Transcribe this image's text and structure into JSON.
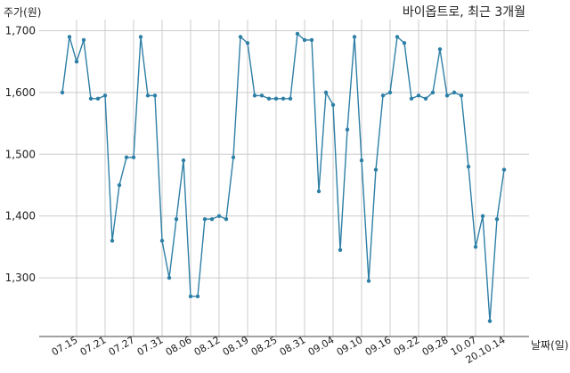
{
  "chart_data": {
    "type": "line",
    "title": "바이옵트로, 최근 3개월",
    "ylabel": "주가(원)",
    "xlabel": "날짜(일)",
    "ylim": [
      1205,
      1718
    ],
    "yticks": [
      "1,300",
      "1,400",
      "1,500",
      "1,600",
      "1,700"
    ],
    "ytick_values": [
      1300,
      1400,
      1500,
      1600,
      1700
    ],
    "xticks": [
      "07.15",
      "07.21",
      "07.27",
      "07.31",
      "08.06",
      "08.12",
      "08.19",
      "08.25",
      "08.31",
      "09.04",
      "09.10",
      "09.16",
      "09.22",
      "09.28",
      "10.07",
      "20.10.14"
    ],
    "xtick_positions": [
      2,
      6,
      10,
      14,
      18,
      22,
      26,
      30,
      34,
      38,
      42,
      46,
      50,
      54,
      58,
      62
    ],
    "grid": true,
    "series": [
      {
        "color": "#2e7fa6",
        "values": [
          1600,
          1690,
          1650,
          1685,
          1590,
          1590,
          1595,
          1360,
          1450,
          1495,
          1495,
          1690,
          1595,
          1595,
          1360,
          1300,
          1395,
          1490,
          1270,
          1270,
          1395,
          1395,
          1400,
          1395,
          1495,
          1690,
          1680,
          1595,
          1595,
          1590,
          1590,
          1590,
          1590,
          1695,
          1685,
          1685,
          1440,
          1600,
          1580,
          1345,
          1540,
          1690,
          1490,
          1295,
          1475,
          1595,
          1600,
          1690,
          1680,
          1590,
          1595,
          1590,
          1600,
          1670,
          1595,
          1600,
          1595,
          1480,
          1350,
          1400,
          1230,
          1395,
          1475
        ]
      }
    ]
  }
}
